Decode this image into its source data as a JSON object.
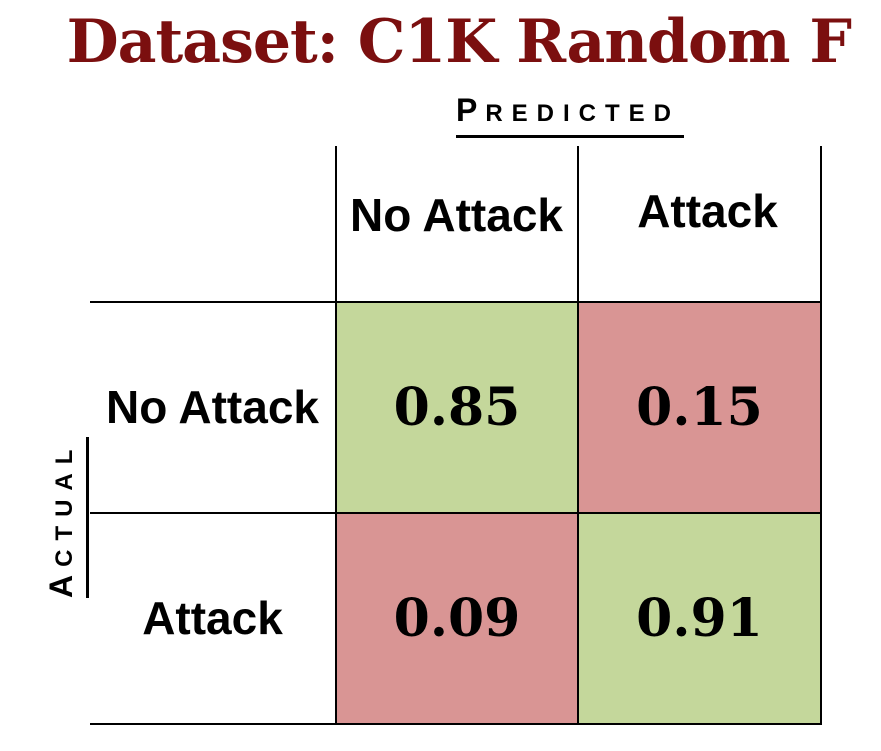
{
  "title": "Dataset: C1K Random F",
  "axis": {
    "predicted_first": "P",
    "predicted_rest": "REDICTED",
    "actual_first": "A",
    "actual_rest": "CTUAL"
  },
  "colors": {
    "title": "#7b0f0f",
    "correct": "#c4d79b",
    "incorrect": "#d99594"
  },
  "chart_data": {
    "type": "heatmap",
    "title": "Dataset: C1K Random F",
    "xlabel": "Predicted",
    "ylabel": "Actual",
    "columns": [
      "No Attack",
      "Attack"
    ],
    "rows": [
      "No Attack",
      "Attack"
    ],
    "values": [
      [
        0.85,
        0.15
      ],
      [
        0.09,
        0.91
      ]
    ],
    "cells": [
      {
        "row": "No Attack",
        "col": "No Attack",
        "value": "0.85"
      },
      {
        "row": "No Attack",
        "col": "Attack",
        "value": "0.15"
      },
      {
        "row": "Attack",
        "col": "No Attack",
        "value": "0.09"
      },
      {
        "row": "Attack",
        "col": "Attack",
        "value": "0.91"
      }
    ],
    "legend": "none",
    "grid": true
  }
}
